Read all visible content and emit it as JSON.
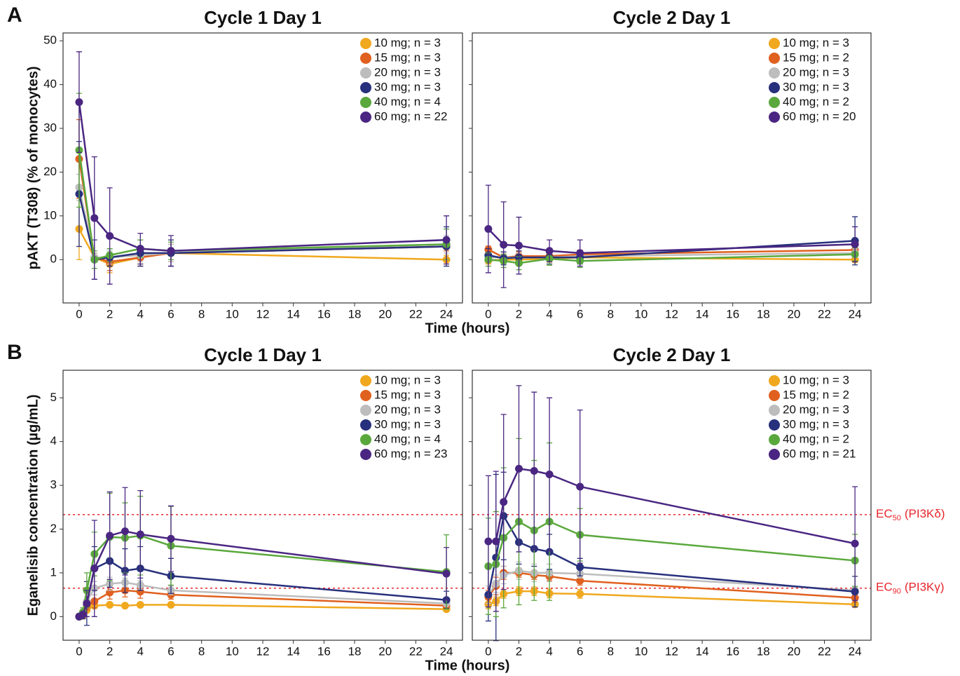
{
  "chart_data": [
    {
      "type": "line",
      "panel_label": "A",
      "title": "Cycle 1 Day 1",
      "ylabel": "pAKT (T308) (% of monocytes)",
      "xlabel": "Time (hours)",
      "x": [
        0,
        1,
        2,
        4,
        6,
        24
      ],
      "xlim": [
        -1.05,
        25.05
      ],
      "xticks": [
        0,
        2,
        4,
        6,
        8,
        10,
        12,
        14,
        16,
        18,
        20,
        22,
        24
      ],
      "ylim": [
        -9.9,
        51.8
      ],
      "yticks": [
        0,
        10,
        20,
        30,
        40,
        50
      ],
      "legend": "upper right",
      "series": [
        {
          "name": "10 mg; n = 3",
          "color": "#f0a81e",
          "values": [
            7,
            0.5,
            -1,
            0.5,
            1.5,
            0
          ],
          "errors": [
            7,
            1,
            2,
            1.5,
            2,
            1
          ]
        },
        {
          "name": "15 mg; n = 3",
          "color": "#e0601f",
          "values": [
            23,
            0.5,
            -0.5,
            0.5,
            1.5,
            3
          ],
          "errors": [
            9,
            1,
            2,
            2,
            2,
            1
          ]
        },
        {
          "name": "20 mg; n = 3",
          "color": "#bdbdbd",
          "values": [
            16.5,
            0.5,
            0.5,
            1,
            1.5,
            3.5
          ],
          "errors": [
            3,
            1,
            1.5,
            1.5,
            2,
            2
          ]
        },
        {
          "name": "30 mg; n = 3",
          "color": "#27307c",
          "values": [
            15,
            0,
            0.5,
            1.5,
            1.5,
            3
          ],
          "errors": [
            12,
            4.5,
            2,
            3,
            3,
            4.5
          ]
        },
        {
          "name": "40 mg; n = 4",
          "color": "#5aa83c",
          "values": [
            25,
            0,
            1,
            2.5,
            2,
            3.5
          ],
          "errors": [
            13,
            2,
            1.5,
            2,
            2,
            3.5
          ]
        },
        {
          "name": "60 mg; n = 22",
          "color": "#4a2682",
          "values": [
            36,
            9.5,
            5.4,
            2.5,
            2,
            4.5
          ],
          "errors": [
            11.5,
            14,
            11,
            3.5,
            3.5,
            5.5
          ]
        }
      ]
    },
    {
      "type": "line",
      "title": "Cycle 2 Day 1",
      "x": [
        0,
        1,
        2,
        4,
        6,
        24
      ],
      "xlim": [
        -1.05,
        25.05
      ],
      "xticks": [
        0,
        2,
        4,
        6,
        8,
        10,
        12,
        14,
        16,
        18,
        20,
        22,
        24
      ],
      "ylim": [
        -9.9,
        51.8
      ],
      "yticks": [
        0,
        10,
        20,
        30,
        40,
        50
      ],
      "legend": "upper right",
      "series": [
        {
          "name": "10 mg; n = 3",
          "color": "#f0a81e",
          "values": [
            -0.2,
            0,
            0,
            0.2,
            0.5,
            0
          ],
          "errors": [
            0.8,
            0.8,
            0.8,
            0.8,
            0.8,
            0.6
          ]
        },
        {
          "name": "15 mg; n = 2",
          "color": "#e0601f",
          "values": [
            2.3,
            0.5,
            0.8,
            0.8,
            1.2,
            2.2
          ],
          "errors": [
            0.8,
            1,
            1,
            1,
            1,
            1
          ]
        },
        {
          "name": "20 mg; n = 3",
          "color": "#bdbdbd",
          "values": [
            0.5,
            0.5,
            0.5,
            0.5,
            0.8,
            1.5
          ],
          "errors": [
            1,
            1,
            1,
            1,
            1,
            1
          ]
        },
        {
          "name": "30 mg; n = 3",
          "color": "#27307c",
          "values": [
            1,
            0.3,
            0.5,
            0.5,
            0.5,
            4.3
          ],
          "errors": [
            1.5,
            1.5,
            1.5,
            1.5,
            1.5,
            5.5
          ]
        },
        {
          "name": "40 mg; n = 2",
          "color": "#5aa83c",
          "values": [
            0,
            -0.3,
            -0.8,
            0.2,
            -0.3,
            1.2
          ],
          "errors": [
            1.5,
            1.5,
            1.5,
            1.5,
            1.5,
            1.5
          ]
        },
        {
          "name": "60 mg; n = 20",
          "color": "#4a2682",
          "values": [
            7,
            3.4,
            3.2,
            2,
            1.5,
            3.5
          ],
          "errors": [
            10,
            9.8,
            6.5,
            2.5,
            3,
            4
          ]
        }
      ]
    },
    {
      "type": "line",
      "panel_label": "B",
      "title": "Cycle 1 Day 1",
      "ylabel": "Eganelisib concentration (µg/mL)",
      "xlabel": "Time (hours)",
      "x": [
        0,
        0.25,
        0.5,
        1,
        2,
        3,
        4,
        6,
        24
      ],
      "xlim": [
        -1.05,
        25.05
      ],
      "xticks": [
        0,
        2,
        4,
        6,
        8,
        10,
        12,
        14,
        16,
        18,
        20,
        22,
        24
      ],
      "ylim": [
        -0.54,
        5.63
      ],
      "yticks": [
        0,
        1,
        2,
        3,
        4,
        5
      ],
      "legend": "upper right",
      "reference_lines": [
        {
          "value": 2.33,
          "color": "#e8262b"
        },
        {
          "value": 0.65,
          "color": "#e8262b"
        }
      ],
      "series": [
        {
          "name": "10 mg; n = 3",
          "color": "#f0a81e",
          "values": [
            0,
            0.02,
            0.15,
            0.25,
            0.27,
            0.25,
            0.27,
            0.27,
            0.17
          ],
          "errors": [
            0,
            0.02,
            0.05,
            0.05,
            0.05,
            0.05,
            0.05,
            0.05,
            0.05
          ]
        },
        {
          "name": "15 mg; n = 3",
          "color": "#e0601f",
          "values": [
            0,
            0.05,
            0.25,
            0.35,
            0.55,
            0.6,
            0.57,
            0.5,
            0.25
          ],
          "errors": [
            0,
            0.05,
            0.1,
            0.15,
            0.15,
            0.15,
            0.15,
            0.1,
            0.05
          ]
        },
        {
          "name": "20 mg; n = 3",
          "color": "#bdbdbd",
          "values": [
            0,
            0.1,
            0.35,
            0.65,
            0.75,
            0.78,
            0.72,
            0.6,
            0.3
          ],
          "errors": [
            0,
            0.05,
            0.1,
            0.15,
            0.15,
            0.1,
            0.1,
            0.1,
            0.05
          ]
        },
        {
          "name": "30 mg; n = 3",
          "color": "#27307c",
          "values": [
            0,
            0.05,
            0.3,
            1.1,
            1.27,
            1.05,
            1.1,
            0.93,
            0.38
          ],
          "errors": [
            0,
            0.1,
            0.5,
            0.5,
            0.6,
            0.5,
            0.5,
            0.4,
            0.2
          ]
        },
        {
          "name": "40 mg; n = 4",
          "color": "#5aa83c",
          "values": [
            0,
            0.1,
            0.6,
            1.43,
            1.82,
            1.8,
            1.85,
            1.62,
            1.02
          ],
          "errors": [
            0,
            0.1,
            0.4,
            0.5,
            1,
            0.8,
            0.9,
            0.9,
            0.85
          ]
        },
        {
          "name": "60 mg; n = 23",
          "color": "#4a2682",
          "values": [
            0,
            0.05,
            0.3,
            1.1,
            1.85,
            1.95,
            1.88,
            1.78,
            0.98
          ],
          "errors": [
            0,
            0.05,
            0.3,
            1.1,
            1,
            1,
            1,
            0.75,
            0.6
          ]
        }
      ]
    },
    {
      "type": "line",
      "title": "Cycle 2 Day 1",
      "x": [
        0,
        0.5,
        1,
        2,
        3,
        4,
        6,
        24
      ],
      "xlim": [
        -1.05,
        25.05
      ],
      "xticks": [
        0,
        2,
        4,
        6,
        8,
        10,
        12,
        14,
        16,
        18,
        20,
        22,
        24
      ],
      "ylim": [
        -0.54,
        5.63
      ],
      "yticks": [
        0,
        1,
        2,
        3,
        4,
        5
      ],
      "legend": "upper right",
      "reference_lines": [
        {
          "value": 2.33,
          "color": "#e8262b",
          "text": "EC",
          "sub": "50",
          "suffix": "(PI3Kδ)"
        },
        {
          "value": 0.65,
          "color": "#e8262b",
          "text": "EC",
          "sub": "90",
          "suffix": "(PI3Kγ)"
        }
      ],
      "series": [
        {
          "name": "10 mg; n = 3",
          "color": "#f0a81e",
          "values": [
            0.28,
            0.35,
            0.52,
            0.58,
            0.58,
            0.53,
            0.52,
            0.28
          ],
          "errors": [
            0.1,
            0.1,
            0.1,
            0.1,
            0.1,
            0.1,
            0.1,
            0.05
          ]
        },
        {
          "name": "15 mg; n = 2",
          "color": "#e0601f",
          "values": [
            0.45,
            0.7,
            1.0,
            1.0,
            0.95,
            0.92,
            0.82,
            0.43
          ],
          "errors": [
            0.15,
            0.2,
            0.15,
            0.1,
            0.1,
            0.1,
            0.1,
            0.1
          ]
        },
        {
          "name": "20 mg; n = 3",
          "color": "#bdbdbd",
          "values": [
            0.5,
            0.75,
            0.95,
            1.05,
            1.0,
            1.0,
            0.98,
            0.6
          ],
          "errors": [
            0.2,
            0.2,
            0.2,
            0.2,
            0.2,
            0.2,
            0.1,
            0.1
          ]
        },
        {
          "name": "30 mg; n = 3",
          "color": "#27307c",
          "values": [
            0.5,
            1.35,
            2.3,
            1.7,
            1.55,
            1.48,
            1.13,
            0.57
          ],
          "errors": [
            0.6,
            1.9,
            1,
            0.5,
            0.4,
            0.4,
            0.2,
            0.35
          ]
        },
        {
          "name": "40 mg; n = 2",
          "color": "#5aa83c",
          "values": [
            1.15,
            1.2,
            1.8,
            2.17,
            1.97,
            2.17,
            1.87,
            1.28
          ],
          "errors": [
            1.1,
            1.2,
            1.6,
            1.9,
            1.6,
            1.8,
            0.6,
            0.6
          ]
        },
        {
          "name": "60 mg; n = 21",
          "color": "#4a2682",
          "values": [
            1.72,
            1.72,
            2.62,
            3.38,
            3.33,
            3.25,
            2.97,
            1.67
          ],
          "errors": [
            1.5,
            1.6,
            2.0,
            1.9,
            1.8,
            1.75,
            1.75,
            1.3
          ]
        }
      ]
    }
  ]
}
